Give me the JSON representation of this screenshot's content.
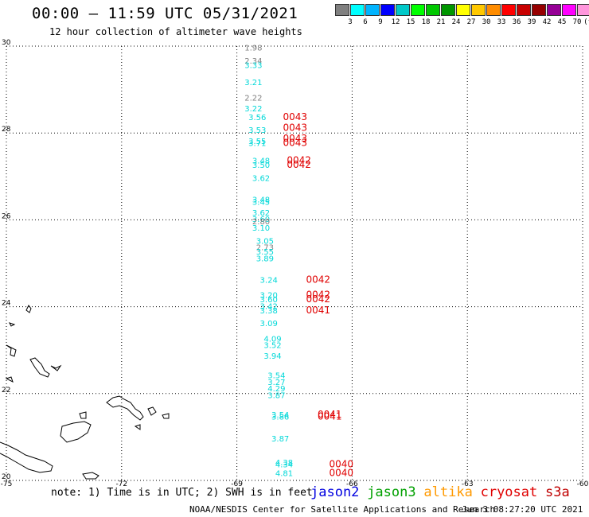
{
  "header": {
    "title": "00:00 – 11:59 UTC 05/31/2021",
    "subtitle": "12 hour collection of altimeter wave heights"
  },
  "legend": {
    "colors": [
      "#808080",
      "#00ffff",
      "#00b4ff",
      "#0000ff",
      "#00c8c8",
      "#00ff00",
      "#00c800",
      "#009600",
      "#ffff00",
      "#ffc800",
      "#ff8c00",
      "#ff0000",
      "#c80000",
      "#960000",
      "#960096",
      "#ff00ff",
      "#ff96dc",
      "#000000"
    ],
    "labels": [
      "3",
      "6",
      "9",
      "12",
      "15",
      "18",
      "21",
      "24",
      "27",
      "30",
      "33",
      "36",
      "39",
      "42",
      "45",
      "70",
      "(ft)"
    ]
  },
  "axes": {
    "x_ticks": [
      "-75",
      "-72",
      "-69",
      "-66",
      "-63",
      "-60"
    ],
    "y_ticks": [
      "30",
      "28",
      "26",
      "24",
      "22",
      "20"
    ]
  },
  "note": "note: 1) Time is in UTC; 2) SWH is in feet",
  "satellites": [
    {
      "name": "jason2",
      "color": "#0000e0"
    },
    {
      "name": "jason3",
      "color": "#00a000"
    },
    {
      "name": "altika",
      "color": "#ff9900"
    },
    {
      "name": "cryosat",
      "color": "#e00000"
    },
    {
      "name": "s3a",
      "color": "#c00000"
    }
  ],
  "footer": {
    "org": "NOAA/NESDIS Center for Satellite Applications and Research",
    "generated": "Jun  3 08:27:20 UTC 2021"
  },
  "chart_data": {
    "type": "scatter",
    "xlim": [
      -75,
      -60
    ],
    "ylim": [
      20,
      30
    ],
    "grid": true,
    "swh_labels": [
      {
        "lon": -68.8,
        "lat": 29.9,
        "v": "1.98",
        "color": "#808080"
      },
      {
        "lon": -68.8,
        "lat": 29.6,
        "v": "2.34",
        "color": "#808080"
      },
      {
        "lon": -68.8,
        "lat": 29.5,
        "v": "3.33",
        "color": "#00d8d8"
      },
      {
        "lon": -68.8,
        "lat": 29.1,
        "v": "3.21",
        "color": "#00d8d8"
      },
      {
        "lon": -68.8,
        "lat": 28.75,
        "v": "2.22",
        "color": "#808080"
      },
      {
        "lon": -68.8,
        "lat": 28.5,
        "v": "3.22",
        "color": "#00d8d8"
      },
      {
        "lon": -68.7,
        "lat": 28.3,
        "v": "3.56",
        "color": "#00d8d8"
      },
      {
        "lon": -68.7,
        "lat": 28.0,
        "v": "3.53",
        "color": "#00d8d8"
      },
      {
        "lon": -68.7,
        "lat": 27.75,
        "v": "3.55",
        "color": "#00d8d8"
      },
      {
        "lon": -68.7,
        "lat": 27.7,
        "v": "3.71",
        "color": "#00d8d8"
      },
      {
        "lon": -68.6,
        "lat": 27.3,
        "v": "3.48",
        "color": "#00d8d8"
      },
      {
        "lon": -68.6,
        "lat": 27.2,
        "v": "3.50",
        "color": "#00d8d8"
      },
      {
        "lon": -68.6,
        "lat": 26.9,
        "v": "3.62",
        "color": "#00d8d8"
      },
      {
        "lon": -68.6,
        "lat": 26.4,
        "v": "3.48",
        "color": "#00d8d8"
      },
      {
        "lon": -68.6,
        "lat": 26.35,
        "v": "3.45",
        "color": "#00d8d8"
      },
      {
        "lon": -68.6,
        "lat": 26.1,
        "v": "3.62",
        "color": "#00d8d8"
      },
      {
        "lon": -68.6,
        "lat": 25.95,
        "v": "3.60",
        "color": "#00d8d8"
      },
      {
        "lon": -68.6,
        "lat": 25.9,
        "v": "2.80",
        "color": "#808080"
      },
      {
        "lon": -68.6,
        "lat": 25.75,
        "v": "3.10",
        "color": "#00d8d8"
      },
      {
        "lon": -68.5,
        "lat": 25.45,
        "v": "3.05",
        "color": "#00d8d8"
      },
      {
        "lon": -68.5,
        "lat": 25.3,
        "v": "2.73",
        "color": "#808080"
      },
      {
        "lon": -68.5,
        "lat": 25.2,
        "v": "3.55",
        "color": "#00d8d8"
      },
      {
        "lon": -68.5,
        "lat": 25.05,
        "v": "3.89",
        "color": "#00d8d8"
      },
      {
        "lon": -68.4,
        "lat": 24.55,
        "v": "3.24",
        "color": "#00d8d8"
      },
      {
        "lon": -68.4,
        "lat": 24.2,
        "v": "3.20",
        "color": "#00d8d8"
      },
      {
        "lon": -68.4,
        "lat": 24.1,
        "v": "3.60",
        "color": "#00d8d8"
      },
      {
        "lon": -68.4,
        "lat": 23.95,
        "v": "3.42",
        "color": "#00d8d8"
      },
      {
        "lon": -68.4,
        "lat": 23.85,
        "v": "3.38",
        "color": "#00d8d8"
      },
      {
        "lon": -68.4,
        "lat": 23.55,
        "v": "3.09",
        "color": "#00d8d8"
      },
      {
        "lon": -68.3,
        "lat": 23.2,
        "v": "4.09",
        "color": "#00d8d8"
      },
      {
        "lon": -68.3,
        "lat": 23.05,
        "v": "3.52",
        "color": "#00d8d8"
      },
      {
        "lon": -68.3,
        "lat": 22.8,
        "v": "3.94",
        "color": "#00d8d8"
      },
      {
        "lon": -68.2,
        "lat": 22.35,
        "v": "3.54",
        "color": "#00d8d8"
      },
      {
        "lon": -68.2,
        "lat": 22.2,
        "v": "3.27",
        "color": "#00d8d8"
      },
      {
        "lon": -68.2,
        "lat": 22.05,
        "v": "4.29",
        "color": "#00d8d8"
      },
      {
        "lon": -68.2,
        "lat": 21.9,
        "v": "3.87",
        "color": "#00d8d8"
      },
      {
        "lon": -68.1,
        "lat": 21.45,
        "v": "3.54",
        "color": "#00d8d8"
      },
      {
        "lon": -68.1,
        "lat": 21.4,
        "v": "3.86",
        "color": "#00d8d8"
      },
      {
        "lon": -68.1,
        "lat": 20.9,
        "v": "3.87",
        "color": "#00d8d8"
      },
      {
        "lon": -68.0,
        "lat": 20.35,
        "v": "4.38",
        "color": "#00d8d8"
      },
      {
        "lon": -68.0,
        "lat": 20.3,
        "v": "4.34",
        "color": "#00d8d8"
      },
      {
        "lon": -68.0,
        "lat": 20.1,
        "v": "4.81",
        "color": "#00d8d8"
      }
    ],
    "time_labels": [
      {
        "lon": -67.8,
        "lat": 28.3,
        "v": "0043",
        "color": "#e00000"
      },
      {
        "lon": -67.8,
        "lat": 28.05,
        "v": "0043",
        "color": "#e00000"
      },
      {
        "lon": -67.8,
        "lat": 27.8,
        "v": "0043",
        "color": "#e00000"
      },
      {
        "lon": -67.8,
        "lat": 27.7,
        "v": "0043",
        "color": "#e00000"
      },
      {
        "lon": -67.7,
        "lat": 27.3,
        "v": "0042",
        "color": "#e00000"
      },
      {
        "lon": -67.7,
        "lat": 27.2,
        "v": "0042",
        "color": "#e00000"
      },
      {
        "lon": -67.2,
        "lat": 24.55,
        "v": "0042",
        "color": "#e00000"
      },
      {
        "lon": -67.2,
        "lat": 24.2,
        "v": "0042",
        "color": "#e00000"
      },
      {
        "lon": -67.2,
        "lat": 24.1,
        "v": "0042",
        "color": "#e00000"
      },
      {
        "lon": -67.2,
        "lat": 23.85,
        "v": "0041",
        "color": "#e00000"
      },
      {
        "lon": -66.9,
        "lat": 21.45,
        "v": "0041",
        "color": "#e00000"
      },
      {
        "lon": -66.9,
        "lat": 21.4,
        "v": "0041",
        "color": "#e00000"
      },
      {
        "lon": -66.6,
        "lat": 20.3,
        "v": "0040",
        "color": "#e00000"
      },
      {
        "lon": -66.6,
        "lat": 20.1,
        "v": "0040",
        "color": "#e00000"
      }
    ]
  }
}
